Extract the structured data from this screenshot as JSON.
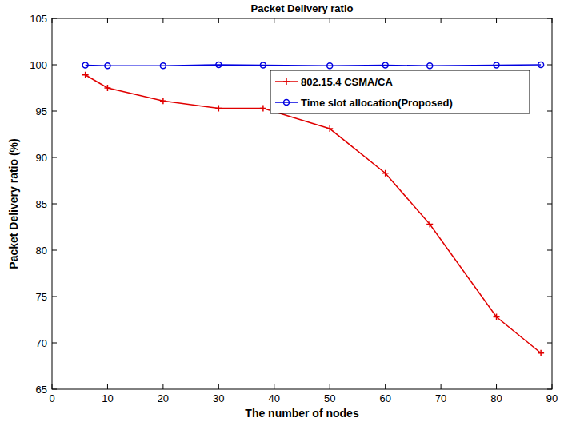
{
  "chart_data": {
    "type": "line",
    "title": "Packet Delivery ratio",
    "x_label": "The number of nodes",
    "y_label": "Packet Delivery ratio (%)",
    "x": [
      6,
      10,
      20,
      30,
      38,
      50,
      60,
      68,
      80,
      88
    ],
    "series": [
      {
        "name": "802.15.4 CSMA/CA",
        "color": "#e00000",
        "marker": "plus",
        "line_style": "solid",
        "values": [
          98.9,
          97.5,
          96.1,
          95.3,
          95.3,
          93.1,
          88.3,
          82.8,
          72.8,
          68.9
        ]
      },
      {
        "name": "Time slot allocation(Proposed)",
        "color": "#0000e0",
        "marker": "circle",
        "line_style": "solid",
        "values": [
          99.95,
          99.9,
          99.9,
          100,
          99.95,
          99.9,
          99.95,
          99.9,
          99.95,
          100
        ]
      }
    ],
    "xlim": [
      0,
      90
    ],
    "xticks": [
      0,
      10,
      20,
      30,
      40,
      50,
      60,
      70,
      80,
      90
    ],
    "ylim": [
      65,
      105
    ],
    "yticks": [
      65,
      70,
      75,
      80,
      85,
      90,
      95,
      100,
      105
    ],
    "grid": false,
    "legend": "upper right"
  }
}
